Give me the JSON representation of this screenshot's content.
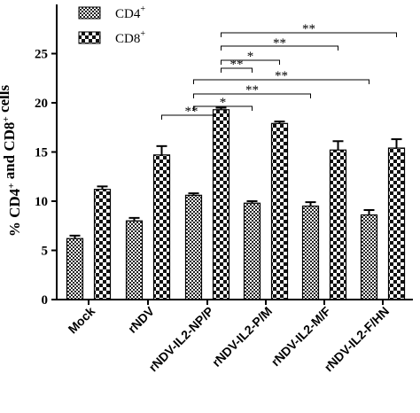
{
  "chart_data": {
    "type": "bar",
    "title": "",
    "xlabel": "",
    "ylabel": {
      "parts": [
        {
          "text": "% CD4",
          "sup": false
        },
        {
          "text": "+",
          "sup": true
        },
        {
          "text": " and CD8",
          "sup": false
        },
        {
          "text": "+",
          "sup": true
        },
        {
          "text": " cells",
          "sup": false
        }
      ]
    },
    "ylim": [
      0,
      30
    ],
    "yticks": [
      0,
      5,
      10,
      15,
      20,
      25
    ],
    "grid": false,
    "legend_position": "top-left",
    "categories": [
      "Mock",
      "rNDV",
      "rNDV-IL2-NP/P",
      "rNDV-IL2-P/M",
      "rNDV-IL2-M/F",
      "rNDV-IL2-F/HN"
    ],
    "series": [
      {
        "name": "CD4",
        "sup": "+",
        "pattern": "fine-checker",
        "values": [
          6.2,
          8.0,
          10.6,
          9.8,
          9.5,
          8.6
        ],
        "errors": [
          0.3,
          0.3,
          0.2,
          0.2,
          0.4,
          0.5
        ]
      },
      {
        "name": "CD8",
        "sup": "+",
        "pattern": "coarse-checker",
        "values": [
          11.2,
          14.7,
          19.3,
          17.9,
          15.2,
          15.4
        ],
        "errors": [
          0.3,
          0.9,
          0.2,
          0.2,
          0.9,
          0.9
        ]
      }
    ],
    "significance": [
      {
        "from": [
          1,
          1
        ],
        "to": [
          2,
          1
        ],
        "label": "**"
      },
      {
        "from": [
          2,
          0
        ],
        "to": [
          3,
          0
        ],
        "label": "*"
      },
      {
        "from": [
          2,
          0
        ],
        "to": [
          4,
          0
        ],
        "label": "**"
      },
      {
        "from": [
          2,
          0
        ],
        "to": [
          5,
          0
        ],
        "label": "**"
      },
      {
        "from": [
          2,
          1
        ],
        "to": [
          3,
          0
        ],
        "label": "**"
      },
      {
        "from": [
          2,
          1
        ],
        "to": [
          3,
          1
        ],
        "label": "*"
      },
      {
        "from": [
          2,
          1
        ],
        "to": [
          4,
          1
        ],
        "label": "**"
      },
      {
        "from": [
          2,
          1
        ],
        "to": [
          5,
          1
        ],
        "label": "**"
      }
    ]
  }
}
